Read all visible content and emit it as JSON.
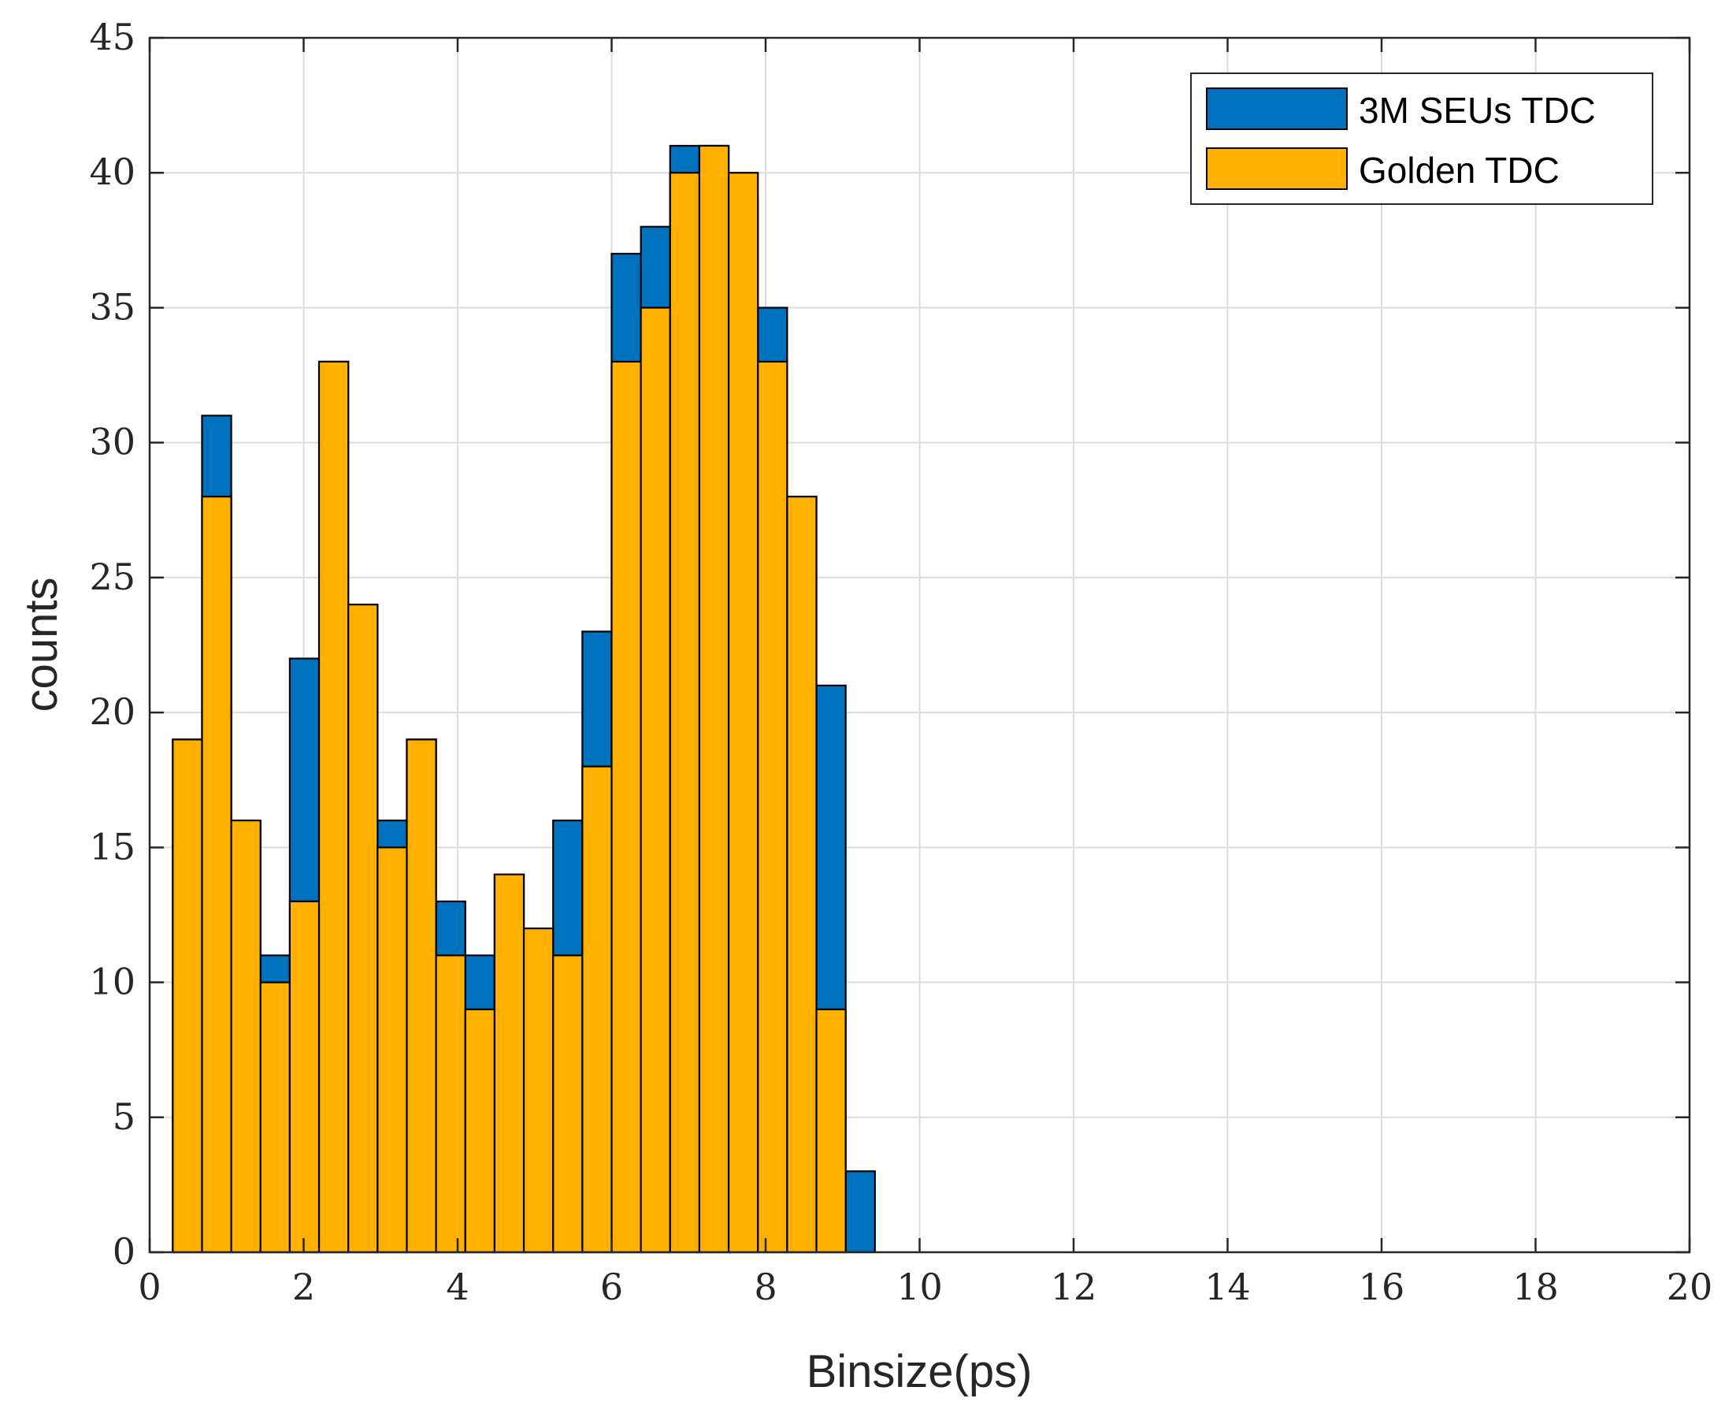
{
  "chart_data": {
    "type": "bar",
    "xlabel": "Binsize(ps)",
    "ylabel": "counts",
    "xlim": [
      0,
      20
    ],
    "ylim": [
      0,
      45
    ],
    "xticks": [
      "0",
      "2",
      "4",
      "6",
      "8",
      "10",
      "12",
      "14",
      "16",
      "18",
      "20"
    ],
    "yticks": [
      "0",
      "5",
      "10",
      "15",
      "20",
      "25",
      "30",
      "35",
      "40",
      "45"
    ],
    "grid": true,
    "legend_position": "top-right",
    "series": [
      {
        "name": "3M SEUs TDC",
        "color": "#0072BD",
        "bin_edges": [
          0.3,
          0.68,
          1.06,
          1.44,
          1.82,
          2.2,
          2.58,
          2.96,
          3.34,
          3.72,
          4.1,
          4.48,
          4.86,
          5.24,
          5.62,
          6.0,
          6.38,
          6.76,
          7.14,
          7.52,
          7.9,
          8.28,
          8.66,
          9.04,
          9.42
        ],
        "values": [
          19,
          31,
          16,
          11,
          22,
          33,
          24,
          16,
          19,
          13,
          11,
          14,
          12,
          16,
          23,
          37,
          38,
          41,
          41,
          39,
          35,
          28,
          21,
          3
        ]
      },
      {
        "name": "Golden TDC",
        "color": "#FFB000",
        "bin_edges": [
          0.3,
          0.68,
          1.06,
          1.44,
          1.82,
          2.2,
          2.58,
          2.96,
          3.34,
          3.72,
          4.1,
          4.48,
          4.86,
          5.24,
          5.62,
          6.0,
          6.38,
          6.76,
          7.14,
          7.52,
          7.9,
          8.28,
          8.66,
          9.04
        ],
        "values": [
          19,
          28,
          16,
          10,
          13,
          33,
          24,
          15,
          19,
          11,
          9,
          14,
          12,
          11,
          18,
          33,
          35,
          40,
          41,
          40,
          33,
          28,
          9
        ]
      }
    ]
  }
}
